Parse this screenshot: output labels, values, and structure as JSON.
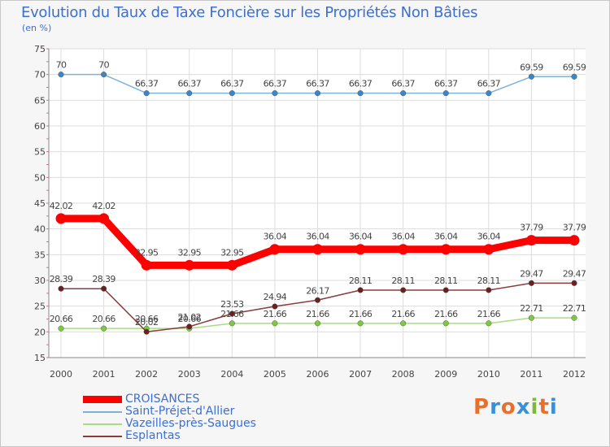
{
  "header": {
    "title": "Evolution du Taux de Taxe Foncière sur les Propriétés Non Bâties",
    "subtitle": "(en %)"
  },
  "logo": {
    "letters": [
      "P",
      "r",
      "o",
      "x",
      "i",
      "t",
      "i"
    ],
    "colors": [
      "#e8702a",
      "#3a8fd6",
      "#e8702a",
      "#3a8fd6",
      "#7ab93a",
      "#e8702a",
      "#3a8fd6"
    ]
  },
  "chart_data": {
    "type": "line",
    "title": "Evolution du Taux de Taxe Foncière sur les Propriétés Non Bâties",
    "ylabel": "(en %)",
    "xlabel": "",
    "ylim": [
      15,
      75
    ],
    "yticks": [
      15,
      20,
      25,
      30,
      35,
      40,
      45,
      50,
      55,
      60,
      65,
      70,
      75
    ],
    "grid": true,
    "legend_position": "bottom-left",
    "x": [
      "2000",
      "2001",
      "2002",
      "2003",
      "2004",
      "2005",
      "2006",
      "2007",
      "2008",
      "2009",
      "2010",
      "2011",
      "2012"
    ],
    "series": [
      {
        "name": "CROISANCES",
        "color": "#ff0000",
        "marker": "#ff0000",
        "emphasis": true,
        "values": [
          42.02,
          42.02,
          32.95,
          32.95,
          32.95,
          36.04,
          36.04,
          36.04,
          36.04,
          36.04,
          36.04,
          37.79,
          37.79
        ],
        "labels": [
          "42.02",
          "42.02",
          "32.95",
          "32.95",
          "32.95",
          "36.04",
          "36.04",
          "36.04",
          "36.04",
          "36.04",
          "36.04",
          "37.79",
          "37.79"
        ]
      },
      {
        "name": "Saint-Préjet-d'Allier",
        "color": "#7fb2d9",
        "marker": "#3a87c8",
        "emphasis": false,
        "values": [
          70,
          70,
          66.37,
          66.37,
          66.37,
          66.37,
          66.37,
          66.37,
          66.37,
          66.37,
          66.37,
          69.59,
          69.59
        ],
        "labels": [
          "70",
          "70",
          "66.37",
          "66.37",
          "66.37",
          "66.37",
          "66.37",
          "66.37",
          "66.37",
          "66.37",
          "66.37",
          "69.59",
          "69.59"
        ]
      },
      {
        "name": "Vazeilles-près-Saugues",
        "color": "#a9dc82",
        "marker": "#7ccb3c",
        "emphasis": false,
        "values": [
          20.66,
          20.66,
          20.66,
          20.66,
          21.66,
          21.66,
          21.66,
          21.66,
          21.66,
          21.66,
          21.66,
          22.71,
          22.71
        ],
        "labels": [
          "20.66",
          "20.66",
          "20.66",
          "20.66",
          "21.66",
          "21.66",
          "21.66",
          "21.66",
          "21.66",
          "21.66",
          "21.66",
          "22.71",
          "22.71"
        ]
      },
      {
        "name": "Esplantas",
        "color": "#8a3b3b",
        "marker": "#6b1f1f",
        "emphasis": false,
        "values": [
          28.39,
          28.39,
          20.02,
          21.02,
          23.53,
          24.94,
          26.17,
          28.11,
          28.11,
          28.11,
          28.11,
          29.47,
          29.47
        ],
        "labels": [
          "28.39",
          "28.39",
          "20.02",
          "21.02",
          "23.53",
          "24.94",
          "26.17",
          "28.11",
          "28.11",
          "28.11",
          "28.11",
          "29.47",
          "29.47"
        ]
      }
    ]
  }
}
